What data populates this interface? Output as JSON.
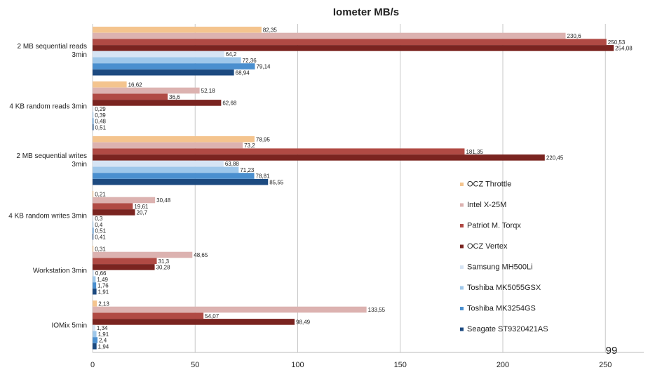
{
  "chart_data": {
    "type": "bar",
    "orientation": "horizontal",
    "title": "Iometer MB/s",
    "xlim": [
      0,
      270
    ],
    "xticks": [
      "0",
      "50",
      "100",
      "150",
      "200",
      "250"
    ],
    "grid": "vertical",
    "legend": "right",
    "watermark": "99",
    "categories": [
      "2 MB sequential reads 3min",
      "4 KB random reads 3min",
      "2 MB sequential writes 3min",
      "4 KB random writes 3min",
      "Workstation 3min",
      "IOMix 5min"
    ],
    "series": [
      {
        "name": "OCZ Throttle",
        "color": "#f4c48e",
        "values": [
          82.35,
          16.62,
          78.95,
          0.21,
          0.31,
          2.13
        ],
        "labels": [
          "82,35",
          "16,62",
          "78,95",
          "0,21",
          "0,31",
          "2,13"
        ]
      },
      {
        "name": "Intel X-25M",
        "color": "#dcb2b0",
        "values": [
          230.6,
          52.18,
          73.2,
          30.48,
          48.65,
          133.55
        ],
        "labels": [
          "230,6",
          "52,18",
          "73,2",
          "30,48",
          "48,65",
          "133,55"
        ]
      },
      {
        "name": "Patriot M. Torqx",
        "color": "#b04a44",
        "values": [
          250.53,
          36.6,
          181.35,
          19.61,
          31.3,
          54.07
        ],
        "labels": [
          "250,53",
          "36,6",
          "181,35",
          "19,61",
          "31,3",
          "54,07"
        ]
      },
      {
        "name": "OCZ Vertex",
        "color": "#7a2420",
        "values": [
          254.08,
          62.68,
          220.45,
          20.7,
          30.28,
          98.49
        ],
        "labels": [
          "254,08",
          "62,68",
          "220,45",
          "20,7",
          "30,28",
          "98,49"
        ]
      },
      {
        "name": "Samsung MH500Li",
        "color": "#d6e4f4",
        "values": [
          64.2,
          0.29,
          63.88,
          0.3,
          0.66,
          1.34
        ],
        "labels": [
          "64,2",
          "0,29",
          "63,88",
          "0,3",
          "0,66",
          "1,34"
        ]
      },
      {
        "name": "Toshiba MK5055GSX",
        "color": "#9ec7ea",
        "values": [
          72.36,
          0.39,
          71.23,
          0.4,
          1.49,
          1.91
        ],
        "labels": [
          "72,36",
          "0,39",
          "71,23",
          "0,4",
          "1,49",
          "1,91"
        ]
      },
      {
        "name": "Toshiba MK3254GS",
        "color": "#4a8fcf",
        "values": [
          79.14,
          0.48,
          78.81,
          0.51,
          1.76,
          2.4
        ],
        "labels": [
          "79,14",
          "0,48",
          "78,81",
          "0,51",
          "1,76",
          "2,4"
        ]
      },
      {
        "name": "Seagate ST9320421AS",
        "color": "#1c4a80",
        "values": [
          68.94,
          0.51,
          85.55,
          0.41,
          1.91,
          1.94
        ],
        "labels": [
          "68,94",
          "0,51",
          "85,55",
          "0,41",
          "1,91",
          "1,94"
        ]
      }
    ]
  }
}
